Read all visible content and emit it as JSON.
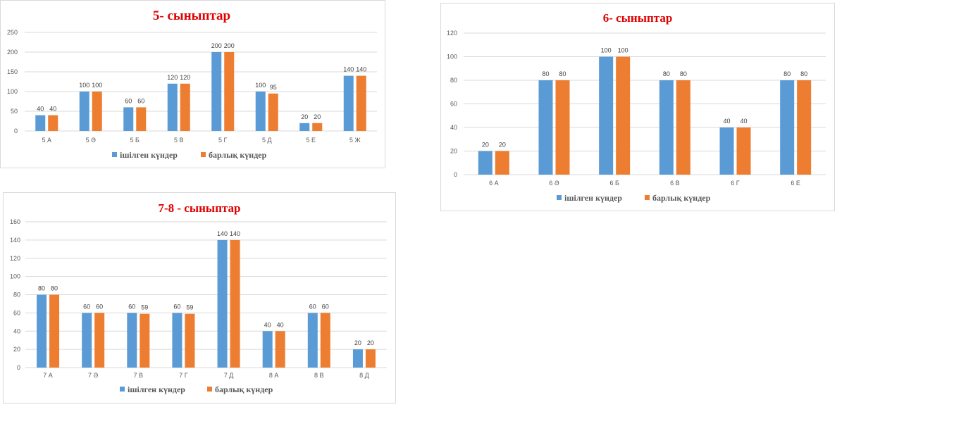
{
  "colors": {
    "series1": "#5b9bd5",
    "series2": "#ed7d31",
    "title": "#e00000",
    "grid": "#d9d9d9"
  },
  "chart_data": [
    {
      "type": "bar",
      "title": "5- сыныптар",
      "categories": [
        "5 А",
        "5 Ә",
        "5 Б",
        "5 В",
        "5 Г",
        "5 Д",
        "5 Е",
        "5 Ж"
      ],
      "series": [
        {
          "name": "ішілген күндер",
          "values": [
            40,
            100,
            60,
            120,
            200,
            100,
            20,
            140
          ]
        },
        {
          "name": "барлық күндер",
          "values": [
            40,
            100,
            60,
            120,
            200,
            95,
            20,
            140
          ]
        }
      ],
      "yticks": [
        0,
        50,
        100,
        150,
        200,
        250
      ],
      "ylim": [
        0,
        250
      ],
      "grid": true,
      "legend": "bottom"
    },
    {
      "type": "bar",
      "title": "6- сыныптар",
      "categories": [
        "6 А",
        "6 Ә",
        "6 Б",
        "6 В",
        "6 Г",
        "6 Е"
      ],
      "series": [
        {
          "name": "ішілген күндер",
          "values": [
            20,
            80,
            100,
            80,
            40,
            80
          ]
        },
        {
          "name": "барлық күндер",
          "values": [
            20,
            80,
            100,
            80,
            40,
            80
          ]
        }
      ],
      "yticks": [
        0,
        20,
        40,
        60,
        80,
        100,
        120
      ],
      "ylim": [
        0,
        120
      ],
      "grid": true,
      "legend": "bottom"
    },
    {
      "type": "bar",
      "title": "7-8 - сыныптар",
      "categories": [
        "7 А",
        "7 Ә",
        "7 В",
        "7 Г",
        "7 Д",
        "8 А",
        "8 В",
        "8 Д"
      ],
      "series": [
        {
          "name": "ішілген күндер",
          "values": [
            80,
            60,
            60,
            60,
            140,
            40,
            60,
            20
          ]
        },
        {
          "name": "барлық күндер",
          "values": [
            80,
            60,
            59,
            59,
            140,
            40,
            60,
            20
          ]
        }
      ],
      "yticks": [
        0,
        20,
        40,
        60,
        80,
        100,
        120,
        140,
        160
      ],
      "ylim": [
        0,
        160
      ],
      "grid": true,
      "legend": "bottom"
    }
  ]
}
